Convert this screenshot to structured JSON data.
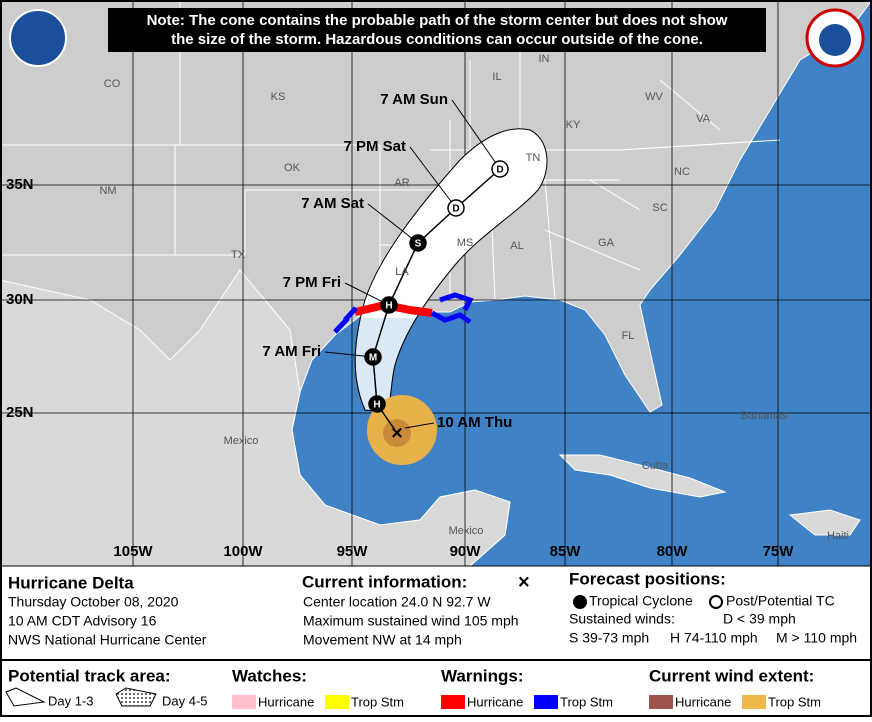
{
  "note": [
    "Note: The cone contains the probable path of the storm center but does not show",
    "the size of the storm. Hazardous conditions can occur outside of the cone."
  ],
  "map_labels": [
    "CO",
    "KS",
    "OK",
    "NM",
    "TX",
    "AR",
    "LA",
    "MS",
    "AL",
    "GA",
    "SC",
    "NC",
    "TN",
    "KY",
    "VA",
    "WV",
    "IN",
    "IL",
    "FL",
    "Mexico",
    "Cuba",
    "Bahamas",
    "Haiti",
    "Mexico"
  ],
  "latitudes": [
    "35N",
    "30N",
    "25N"
  ],
  "longitudes": [
    "105W",
    "100W",
    "95W",
    "90W",
    "85W",
    "80W",
    "75W"
  ],
  "forecast": [
    {
      "time": "7 AM Sun",
      "symbol": "D"
    },
    {
      "time": "7 PM Sat",
      "symbol": "D"
    },
    {
      "time": "7 AM Sat",
      "symbol": "S"
    },
    {
      "time": "7 PM Fri",
      "symbol": "H"
    },
    {
      "time": "7 AM Fri",
      "symbol": "M"
    },
    {
      "time": null,
      "symbol": "H"
    }
  ],
  "current_label": "10 AM Thu",
  "storm": {
    "name": "Hurricane Delta",
    "date": "Thursday October 08, 2020",
    "advisory": "10 AM CDT Advisory 16",
    "center": "NWS National Hurricane Center"
  },
  "current": {
    "title": "Current information:",
    "marker": "×",
    "lines": [
      "Center location 24.0 N 92.7 W",
      "Maximum sustained wind 105 mph",
      "Movement NW at 14 mph"
    ]
  },
  "positions": {
    "title": "Forecast positions:",
    "tropical": "Tropical Cyclone",
    "post": "Post/Potential TC",
    "winds": "Sustained winds:",
    "d": "D < 39 mph",
    "s": "S 39-73 mph",
    "h": "H 74-110 mph",
    "m": "M > 110 mph"
  },
  "legend": {
    "track": "Potential track area:",
    "day13": "Day 1-3",
    "day45": "Day 4-5",
    "watches": "Watches:",
    "watch_hur": "Hurricane",
    "watch_ts": "Trop Stm",
    "warnings": "Warnings:",
    "warn_hur": "Hurricane",
    "warn_ts": "Trop Stm",
    "wind": "Current wind extent:",
    "wind_hur": "Hurricane",
    "wind_ts": "Trop Stm"
  }
}
